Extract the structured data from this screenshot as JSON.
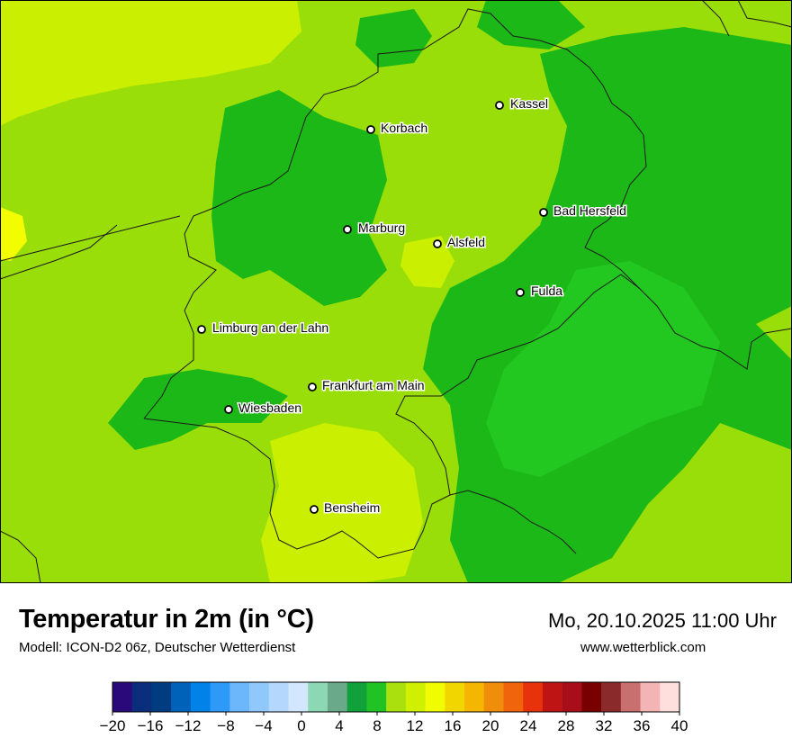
{
  "title": "Temperatur in 2m (in °C)",
  "subtitle": "Modell: ICON-D2 06z, Deutscher Wetterdienst",
  "datetime": "Mo, 20.10.2025 11:00 Uhr",
  "website": "www.wetterblick.com",
  "cities": [
    {
      "name": "Kassel"
    },
    {
      "name": "Korbach"
    },
    {
      "name": "Bad Hersfeld"
    },
    {
      "name": "Marburg"
    },
    {
      "name": "Alsfeld"
    },
    {
      "name": "Fulda"
    },
    {
      "name": "Limburg an der Lahn"
    },
    {
      "name": "Frankfurt am Main"
    },
    {
      "name": "Wiesbaden"
    },
    {
      "name": "Bensheim"
    }
  ],
  "legend": {
    "colors": [
      "#2a0a7a",
      "#0a2e7c",
      "#003c80",
      "#0062b8",
      "#0082e8",
      "#2d9af8",
      "#6cb6fb",
      "#91c8fc",
      "#b4d7fd",
      "#d2e6fe",
      "#8cd8b4",
      "#6aaa8a",
      "#11a13a",
      "#21c224",
      "#a9e00e",
      "#cff000",
      "#f2fc00",
      "#f2d600",
      "#f4b600",
      "#f08e0c",
      "#f0640c",
      "#e8320c",
      "#be1414",
      "#a80e1a",
      "#780000",
      "#8b2a2a",
      "#c87070",
      "#f2b4b4",
      "#ffdede"
    ],
    "ticks": [
      "−20",
      "−16",
      "−12",
      "−8",
      "−4",
      "0",
      "4",
      "8",
      "12",
      "16",
      "20",
      "24",
      "28",
      "32",
      "36",
      "40"
    ]
  },
  "map_colors": {
    "cool": "#1cb817",
    "mid": "#22c81f",
    "warm": "#99dd09",
    "warmer": "#cbef00",
    "hottest": "#f4fc00"
  }
}
